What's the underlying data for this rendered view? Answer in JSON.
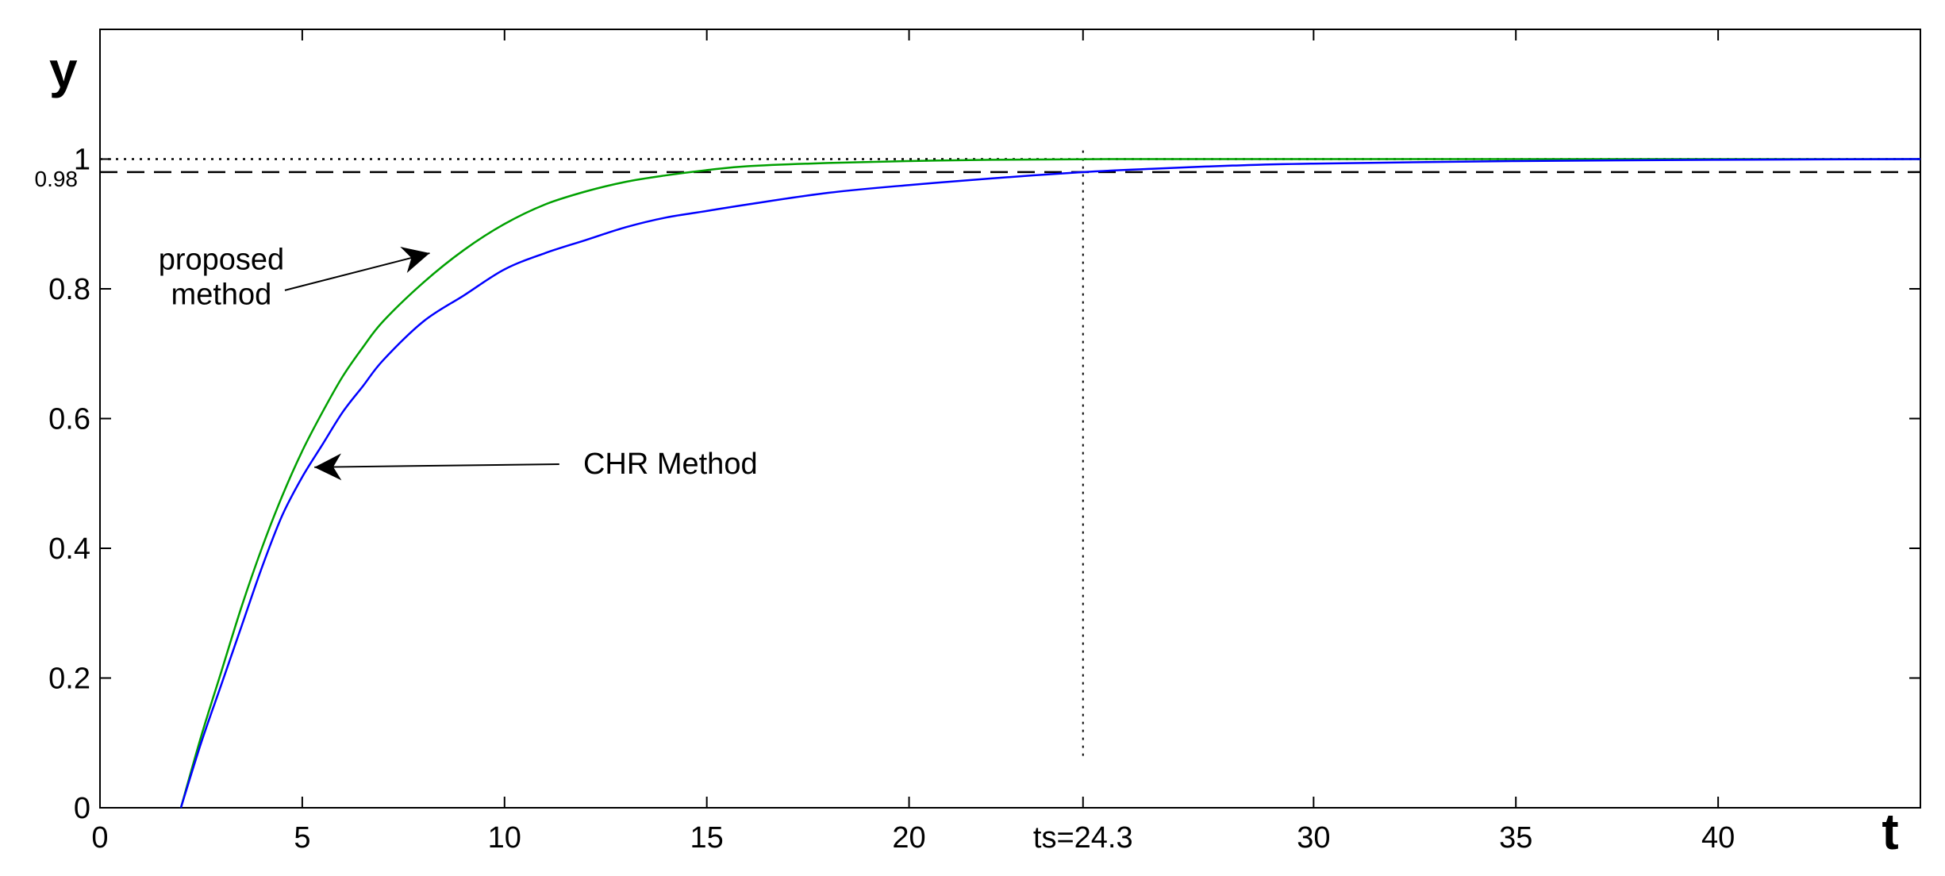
{
  "chart_data": {
    "type": "line",
    "xlabel": "t",
    "ylabel": "y",
    "xlim": [
      0,
      45
    ],
    "ylim": [
      0,
      1.2
    ],
    "grid": false,
    "x_ticks": [
      {
        "value": 0,
        "label": "0"
      },
      {
        "value": 5,
        "label": "5"
      },
      {
        "value": 10,
        "label": "10"
      },
      {
        "value": 15,
        "label": "15"
      },
      {
        "value": 20,
        "label": "20"
      },
      {
        "value": 24.3,
        "label": "ts=24.3"
      },
      {
        "value": 30,
        "label": "30"
      },
      {
        "value": 35,
        "label": "35"
      },
      {
        "value": 40,
        "label": "40"
      }
    ],
    "y_ticks": [
      {
        "value": 0,
        "label": "0"
      },
      {
        "value": 0.2,
        "label": "0.2"
      },
      {
        "value": 0.4,
        "label": "0.4"
      },
      {
        "value": 0.6,
        "label": "0.6"
      },
      {
        "value": 0.8,
        "label": "0.8"
      },
      {
        "value": 1,
        "label": "1"
      }
    ],
    "y_extra_tick": {
      "value": 0.98,
      "label": "0.98"
    },
    "reference_lines": [
      {
        "orientation": "horizontal",
        "value": 1.0,
        "style": "dotted"
      },
      {
        "orientation": "horizontal",
        "value": 0.98,
        "style": "dashed"
      },
      {
        "orientation": "vertical",
        "value": 24.3,
        "style": "dotted",
        "y_range": [
          0.08,
          1.02
        ]
      }
    ],
    "series": [
      {
        "color": "#00a000",
        "x": [
          2,
          2.5,
          3,
          3.5,
          4,
          4.5,
          5,
          5.5,
          6,
          6.5,
          7,
          8,
          9,
          10,
          11,
          12,
          13,
          14,
          15,
          16,
          18,
          20,
          22,
          25,
          30,
          35,
          40,
          45
        ],
        "y": [
          0,
          0.11,
          0.21,
          0.31,
          0.4,
          0.48,
          0.55,
          0.61,
          0.665,
          0.71,
          0.75,
          0.81,
          0.86,
          0.9,
          0.93,
          0.95,
          0.965,
          0.975,
          0.983,
          0.989,
          0.994,
          0.997,
          0.999,
          1.0,
          1.0,
          1.0,
          1.0,
          1.0
        ]
      },
      {
        "color": "#0000ff",
        "x": [
          2,
          2.5,
          3,
          3.5,
          4,
          4.5,
          5,
          5.5,
          6,
          6.5,
          7,
          8,
          9,
          10,
          11,
          12,
          13,
          14,
          15,
          16,
          18,
          20,
          22,
          24.3,
          26,
          28,
          30,
          35,
          40,
          45
        ],
        "y": [
          0,
          0.1,
          0.19,
          0.28,
          0.37,
          0.45,
          0.51,
          0.56,
          0.61,
          0.65,
          0.69,
          0.75,
          0.79,
          0.83,
          0.855,
          0.875,
          0.895,
          0.91,
          0.92,
          0.93,
          0.948,
          0.96,
          0.97,
          0.98,
          0.985,
          0.99,
          0.993,
          0.997,
          0.999,
          1.0
        ]
      }
    ],
    "annotations": [
      {
        "lines": [
          "proposed",
          "method"
        ],
        "text_at": [
          3.0,
          0.83
        ],
        "arrow_to": [
          8.15,
          0.855
        ]
      },
      {
        "lines": [
          "CHR Method"
        ],
        "text_at": [
          14.1,
          0.515
        ],
        "arrow_to": [
          5.3,
          0.525
        ]
      }
    ]
  }
}
